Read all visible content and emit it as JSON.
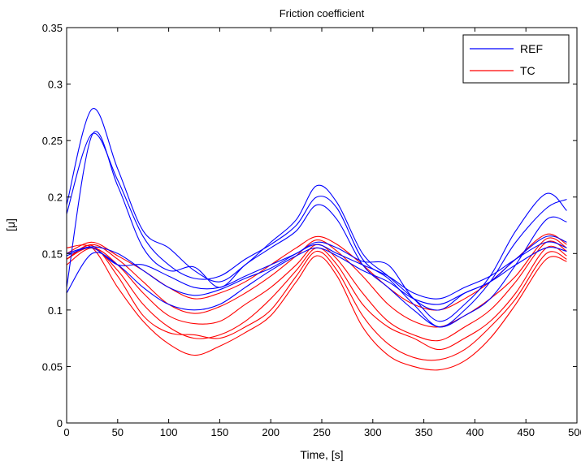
{
  "chart_data": {
    "type": "line",
    "title": "Friction coefficient",
    "xlabel": "Time, [s]",
    "ylabel": "[μ]",
    "xlim": [
      0,
      500
    ],
    "ylim": [
      0,
      0.35
    ],
    "xticks": [
      0,
      50,
      100,
      150,
      200,
      250,
      300,
      350,
      400,
      450,
      500
    ],
    "yticks": [
      0,
      0.05,
      0.1,
      0.15,
      0.2,
      0.25,
      0.3,
      0.35
    ],
    "xtick_labels": [
      "0",
      "50",
      "100",
      "150",
      "200",
      "250",
      "300",
      "350",
      "400",
      "450",
      "500"
    ],
    "ytick_labels": [
      "0",
      "0.05",
      "0.1",
      "0.15",
      "0.2",
      "0.25",
      "0.3",
      "0.35"
    ],
    "grid": false,
    "legend_position": "top-right",
    "legend": [
      {
        "label": "REF",
        "color": "#0000ff"
      },
      {
        "label": "TC",
        "color": "#ff0000"
      }
    ],
    "x": [
      0,
      25,
      50,
      75,
      100,
      125,
      150,
      175,
      200,
      225,
      245,
      265,
      290,
      315,
      340,
      365,
      390,
      415,
      440,
      470,
      490
    ],
    "series": [
      {
        "group": "REF",
        "color": "#0000ff",
        "values": [
          0.193,
          0.278,
          0.225,
          0.17,
          0.155,
          0.135,
          0.125,
          0.14,
          0.16,
          0.18,
          0.21,
          0.195,
          0.15,
          0.13,
          0.11,
          0.09,
          0.105,
          0.13,
          0.17,
          0.203,
          0.188
        ]
      },
      {
        "group": "REF",
        "color": "#0000ff",
        "values": [
          0.185,
          0.256,
          0.215,
          0.165,
          0.14,
          0.128,
          0.13,
          0.145,
          0.158,
          0.175,
          0.2,
          0.19,
          0.145,
          0.128,
          0.105,
          0.085,
          0.1,
          0.125,
          0.16,
          0.19,
          0.198
        ]
      },
      {
        "group": "REF",
        "color": "#0000ff",
        "values": [
          0.12,
          0.255,
          0.21,
          0.155,
          0.135,
          0.138,
          0.12,
          0.14,
          0.155,
          0.17,
          0.193,
          0.18,
          0.14,
          0.12,
          0.1,
          0.085,
          0.095,
          0.11,
          0.14,
          0.18,
          0.178
        ]
      },
      {
        "group": "REF",
        "color": "#0000ff",
        "values": [
          0.148,
          0.155,
          0.14,
          0.14,
          0.13,
          0.12,
          0.12,
          0.13,
          0.14,
          0.15,
          0.16,
          0.155,
          0.143,
          0.14,
          0.11,
          0.1,
          0.115,
          0.125,
          0.145,
          0.165,
          0.16
        ]
      },
      {
        "group": "REF",
        "color": "#0000ff",
        "values": [
          0.15,
          0.156,
          0.15,
          0.135,
          0.12,
          0.113,
          0.118,
          0.128,
          0.137,
          0.15,
          0.158,
          0.15,
          0.14,
          0.13,
          0.115,
          0.11,
          0.12,
          0.13,
          0.145,
          0.16,
          0.155
        ]
      },
      {
        "group": "REF",
        "color": "#0000ff",
        "values": [
          0.115,
          0.15,
          0.14,
          0.12,
          0.105,
          0.1,
          0.105,
          0.12,
          0.135,
          0.148,
          0.155,
          0.148,
          0.135,
          0.125,
          0.11,
          0.105,
          0.115,
          0.125,
          0.14,
          0.155,
          0.152
        ]
      },
      {
        "group": "TC",
        "color": "#ff0000",
        "values": [
          0.15,
          0.16,
          0.148,
          0.135,
          0.12,
          0.11,
          0.115,
          0.125,
          0.14,
          0.155,
          0.165,
          0.158,
          0.14,
          0.12,
          0.105,
          0.1,
          0.11,
          0.125,
          0.145,
          0.167,
          0.158
        ]
      },
      {
        "group": "TC",
        "color": "#ff0000",
        "values": [
          0.145,
          0.158,
          0.145,
          0.125,
          0.105,
          0.097,
          0.103,
          0.115,
          0.13,
          0.148,
          0.162,
          0.152,
          0.13,
          0.105,
          0.09,
          0.085,
          0.095,
          0.11,
          0.13,
          0.163,
          0.155
        ]
      },
      {
        "group": "TC",
        "color": "#ff0000",
        "values": [
          0.14,
          0.155,
          0.14,
          0.115,
          0.095,
          0.088,
          0.09,
          0.105,
          0.12,
          0.14,
          0.158,
          0.145,
          0.115,
          0.09,
          0.078,
          0.073,
          0.085,
          0.1,
          0.125,
          0.16,
          0.152
        ]
      },
      {
        "group": "TC",
        "color": "#ff0000",
        "values": [
          0.145,
          0.155,
          0.135,
          0.105,
          0.085,
          0.075,
          0.078,
          0.09,
          0.11,
          0.135,
          0.155,
          0.14,
          0.105,
          0.085,
          0.075,
          0.065,
          0.075,
          0.09,
          0.115,
          0.155,
          0.148
        ]
      },
      {
        "group": "TC",
        "color": "#ff0000",
        "values": [
          0.145,
          0.157,
          0.13,
          0.095,
          0.08,
          0.078,
          0.075,
          0.085,
          0.1,
          0.13,
          0.152,
          0.135,
          0.095,
          0.07,
          0.058,
          0.056,
          0.065,
          0.085,
          0.11,
          0.15,
          0.145
        ]
      },
      {
        "group": "TC",
        "color": "#ff0000",
        "values": [
          0.155,
          0.155,
          0.12,
          0.09,
          0.07,
          0.06,
          0.068,
          0.08,
          0.095,
          0.125,
          0.148,
          0.13,
          0.085,
          0.06,
          0.05,
          0.047,
          0.055,
          0.075,
          0.105,
          0.145,
          0.143
        ]
      }
    ]
  }
}
